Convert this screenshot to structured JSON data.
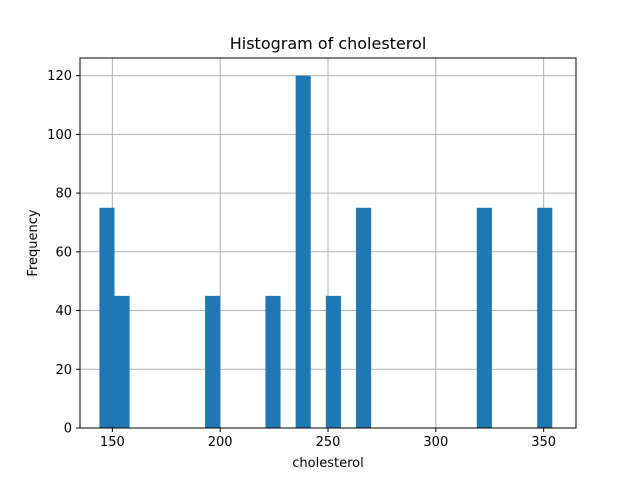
{
  "chart_data": {
    "type": "bar",
    "title": "Histogram of cholesterol",
    "xlabel": "cholesterol",
    "ylabel": "Frequency",
    "xlim": [
      135,
      365
    ],
    "ylim": [
      0,
      126
    ],
    "xticks": [
      150,
      200,
      250,
      300,
      350
    ],
    "yticks": [
      0,
      20,
      40,
      60,
      80,
      100,
      120
    ],
    "grid": true,
    "bar_color": "#1f77b4",
    "bins": [
      {
        "x0": 144.0,
        "x1": 151.0,
        "count": 75
      },
      {
        "x0": 151.0,
        "x1": 158.0,
        "count": 45
      },
      {
        "x0": 193.0,
        "x1": 200.0,
        "count": 45
      },
      {
        "x0": 221.0,
        "x1": 228.0,
        "count": 45
      },
      {
        "x0": 235.0,
        "x1": 242.0,
        "count": 120
      },
      {
        "x0": 249.0,
        "x1": 256.0,
        "count": 45
      },
      {
        "x0": 263.0,
        "x1": 270.0,
        "count": 75
      },
      {
        "x0": 319.0,
        "x1": 326.0,
        "count": 75
      },
      {
        "x0": 347.0,
        "x1": 354.0,
        "count": 75
      }
    ]
  }
}
